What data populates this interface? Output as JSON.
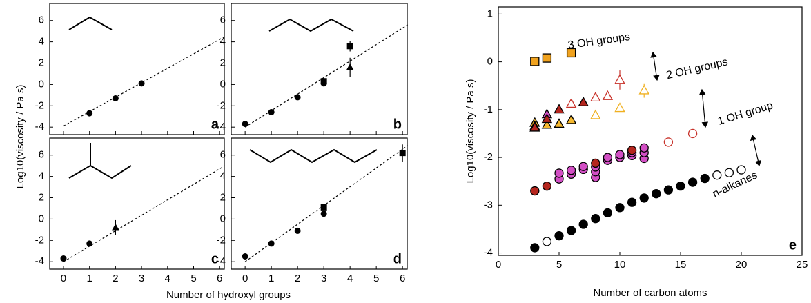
{
  "shared_labels": {
    "xlabel": "Number of hydroxyl groups",
    "ylabel": "Log10(viscosity / Pa s)"
  },
  "chart_data": [
    {
      "type": "scatter",
      "label": "a",
      "xlim": [
        -0.53,
        6.18
      ],
      "ylim": [
        -4.7,
        7.6
      ],
      "xticks": [
        0,
        1,
        2,
        3,
        4,
        5,
        6
      ],
      "yticks": [
        -4,
        -2,
        0,
        2,
        4,
        6
      ],
      "xtick_labels": false,
      "fit": {
        "x": [
          0,
          6.2
        ],
        "values": [
          -3.9,
          4.5
        ]
      },
      "series": [
        {
          "marker": "circle",
          "filled": true,
          "color": "#000000",
          "x": [
            1,
            2,
            3
          ],
          "values": [
            -2.7,
            -1.3,
            0.1
          ]
        }
      ]
    },
    {
      "type": "scatter",
      "label": "b",
      "xlim": [
        -0.53,
        6.18
      ],
      "ylim": [
        -4.7,
        7.6
      ],
      "xticks": [
        0,
        1,
        2,
        3,
        4,
        5,
        6
      ],
      "yticks": [
        -4,
        -2,
        0,
        2,
        4,
        6
      ],
      "xtick_labels": false,
      "fit": {
        "x": [
          0,
          6.2
        ],
        "values": [
          -4,
          5.6
        ]
      },
      "series": [
        {
          "marker": "circle",
          "filled": true,
          "color": "#000000",
          "x": [
            0,
            1,
            2,
            3
          ],
          "values": [
            -3.7,
            -2.6,
            -1.2,
            0.1
          ]
        },
        {
          "marker": "square",
          "filled": true,
          "color": "#000000",
          "x": [
            3,
            4
          ],
          "values": [
            0.3,
            3.6
          ],
          "errors": [
            0.3,
            0.5
          ]
        },
        {
          "marker": "triangle",
          "filled": true,
          "color": "#000000",
          "x": [
            4
          ],
          "values": [
            1.6
          ],
          "errors": [
            0.9
          ]
        }
      ]
    },
    {
      "type": "scatter",
      "label": "c",
      "xlim": [
        -0.53,
        6.18
      ],
      "ylim": [
        -4.7,
        7.6
      ],
      "xticks": [
        0,
        1,
        2,
        3,
        4,
        5,
        6
      ],
      "yticks": [
        -4,
        -2,
        0,
        2,
        4,
        6
      ],
      "xtick_labels": true,
      "fit": {
        "x": [
          0,
          6.2
        ],
        "values": [
          -4,
          5
        ]
      },
      "series": [
        {
          "marker": "circle",
          "filled": true,
          "color": "#000000",
          "x": [
            0,
            1
          ],
          "values": [
            -3.7,
            -2.3
          ]
        },
        {
          "marker": "triangle",
          "filled": true,
          "color": "#000000",
          "x": [
            2
          ],
          "values": [
            -0.8
          ],
          "errors": [
            0.7
          ]
        }
      ]
    },
    {
      "type": "scatter",
      "label": "d",
      "xlim": [
        -0.53,
        6.18
      ],
      "ylim": [
        -4.7,
        7.6
      ],
      "xticks": [
        0,
        1,
        2,
        3,
        4,
        5,
        6
      ],
      "yticks": [
        -4,
        -2,
        0,
        2,
        4,
        6
      ],
      "xtick_labels": true,
      "fit": {
        "x": [
          0,
          6.2
        ],
        "values": [
          -4,
          6.9
        ]
      },
      "series": [
        {
          "marker": "circle",
          "filled": true,
          "color": "#000000",
          "x": [
            0,
            1,
            2,
            3
          ],
          "values": [
            -3.5,
            -2.3,
            -1.1,
            0.5
          ]
        },
        {
          "marker": "square",
          "filled": true,
          "color": "#000000",
          "x": [
            3,
            6
          ],
          "values": [
            1.1,
            6.2
          ],
          "errors": [
            0.3,
            0.8
          ]
        }
      ]
    },
    {
      "type": "scatter",
      "label": "e",
      "xlabel": "Number of carbon atoms",
      "ylabel": "Log10(viscosity / Pa s)",
      "xlim": [
        0,
        25
      ],
      "ylim": [
        -4.05,
        1.15
      ],
      "xticks": [
        0,
        5,
        10,
        15,
        20,
        25
      ],
      "yticks": [
        1,
        0,
        -1,
        -2,
        -3,
        -4
      ],
      "xtick_labels": true,
      "annotations": [
        "3 OH groups",
        "2 OH groups",
        "1 OH group",
        "n-alkanes"
      ],
      "series": [
        {
          "marker": "circle",
          "filled": true,
          "color": "#000000",
          "x": [
            3,
            5,
            6,
            7,
            8,
            9,
            10,
            11,
            12,
            13,
            14,
            15,
            16,
            17
          ],
          "values": [
            -3.89,
            -3.64,
            -3.53,
            -3.4,
            -3.28,
            -3.16,
            -3.05,
            -2.94,
            -2.85,
            -2.76,
            -2.68,
            -2.6,
            -2.52,
            -2.44
          ]
        },
        {
          "marker": "circle",
          "filled": false,
          "color": "#000000",
          "x": [
            4,
            18,
            19,
            20
          ],
          "values": [
            -3.76,
            -2.37,
            -2.32,
            -2.26
          ]
        },
        {
          "marker": "circle",
          "filled": true,
          "color": "#d24fc4",
          "x": [
            5,
            5,
            6,
            6,
            7,
            7,
            8,
            8,
            8,
            9,
            9,
            10,
            10,
            11,
            11,
            12,
            12,
            12
          ],
          "values": [
            -2.45,
            -2.33,
            -2.35,
            -2.27,
            -2.25,
            -2.19,
            -2.42,
            -2.3,
            -2.2,
            -2.06,
            -2.0,
            -2.0,
            -1.94,
            -1.96,
            -1.9,
            -2.02,
            -1.9,
            -1.8
          ]
        },
        {
          "marker": "circle",
          "filled": true,
          "color": "#b5261e",
          "x": [
            3,
            4,
            8,
            11
          ],
          "values": [
            -2.7,
            -2.6,
            -2.12,
            -1.85
          ]
        },
        {
          "marker": "circle",
          "filled": false,
          "color": "#c8322a",
          "x": [
            14,
            16
          ],
          "values": [
            -1.68,
            -1.5
          ]
        },
        {
          "marker": "triangle",
          "filled": true,
          "color": "#f5b82e",
          "x": [
            3,
            4,
            5,
            6
          ],
          "values": [
            -1.28,
            -1.32,
            -1.3,
            -1.22
          ]
        },
        {
          "marker": "triangle",
          "filled": true,
          "color": "#d24fc4",
          "x": [
            3,
            4
          ],
          "values": [
            -1.35,
            -1.1
          ]
        },
        {
          "marker": "triangle",
          "filled": true,
          "color": "#b5261e",
          "x": [
            3,
            4,
            5,
            7
          ],
          "values": [
            -1.38,
            -1.2,
            -1.0,
            -0.85
          ]
        },
        {
          "marker": "triangle",
          "filled": false,
          "color": "#c8322a",
          "x": [
            6,
            8,
            9
          ],
          "values": [
            -0.88,
            -0.75,
            -0.72
          ]
        },
        {
          "marker": "triangle",
          "filled": false,
          "color": "#c8322a",
          "x": [
            10
          ],
          "values": [
            -0.38
          ],
          "errors": [
            0.2
          ]
        },
        {
          "marker": "triangle",
          "filled": false,
          "color": "#f0b020",
          "x": [
            8,
            10
          ],
          "values": [
            -1.12,
            -0.97
          ]
        },
        {
          "marker": "triangle",
          "filled": false,
          "color": "#f0b020",
          "x": [
            12
          ],
          "values": [
            -0.6
          ],
          "errors": [
            0.15
          ]
        },
        {
          "marker": "square",
          "filled": true,
          "color": "#f0a21e",
          "x": [
            3,
            4,
            6
          ],
          "values": [
            0.01,
            0.08,
            0.19
          ]
        }
      ]
    }
  ]
}
